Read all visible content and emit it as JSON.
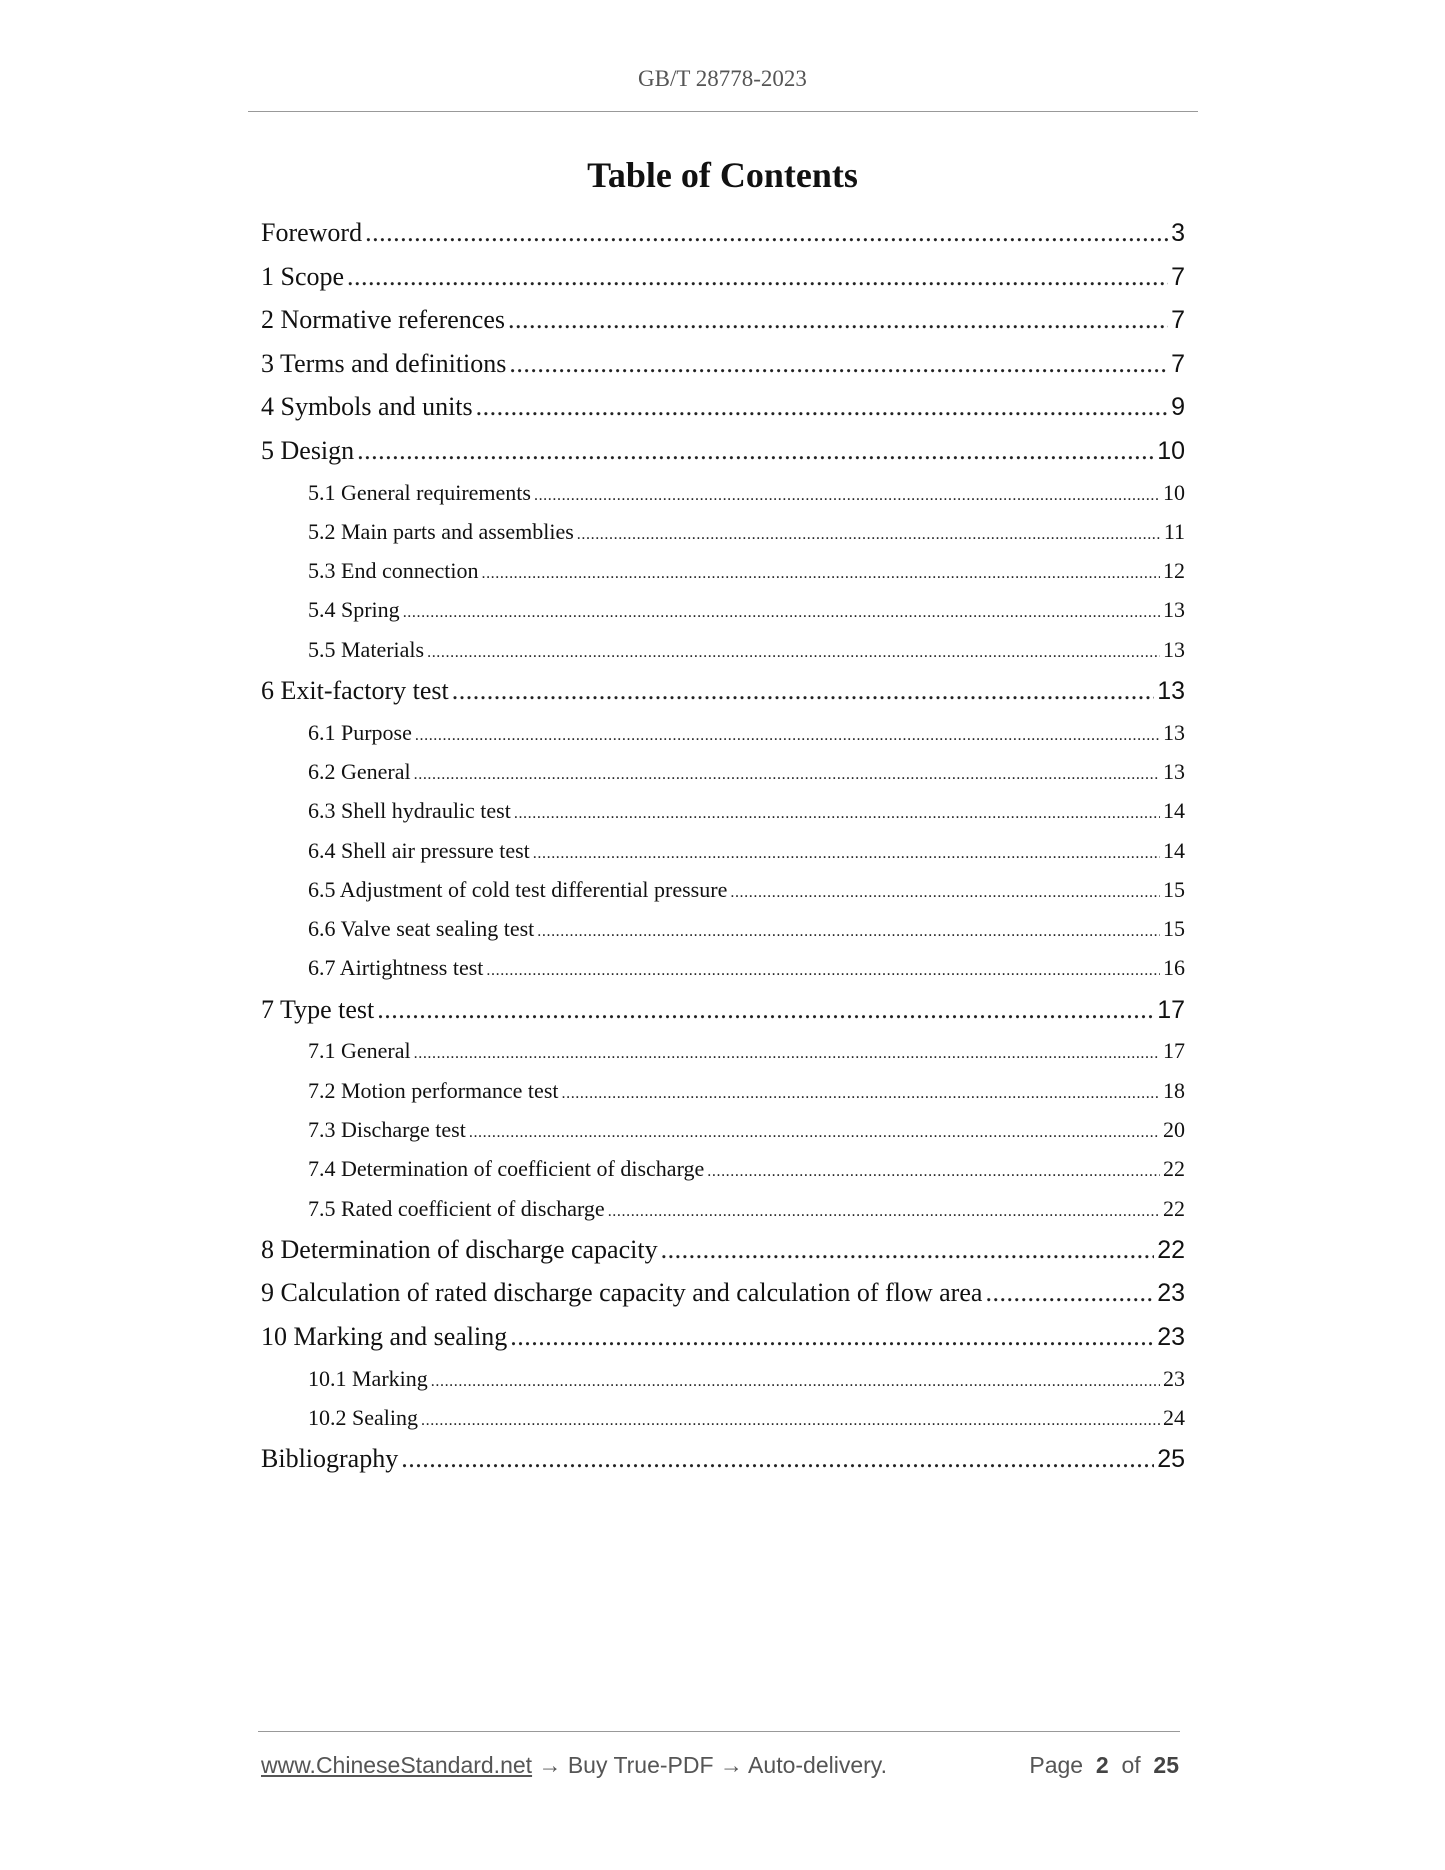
{
  "header": {
    "doc_code": "GB/T 28778-2023"
  },
  "title": "Table of Contents",
  "toc": [
    {
      "level": 1,
      "label": "Foreword",
      "page": "3"
    },
    {
      "level": 1,
      "label": "1 Scope",
      "page": "7"
    },
    {
      "level": 1,
      "label": "2 Normative references",
      "page": "7"
    },
    {
      "level": 1,
      "label": "3 Terms and definitions",
      "page": "7"
    },
    {
      "level": 1,
      "label": "4 Symbols and units",
      "page": "9"
    },
    {
      "level": 1,
      "label": "5 Design",
      "page": "10"
    },
    {
      "level": 2,
      "label": "5.1 General requirements",
      "page": "10"
    },
    {
      "level": 2,
      "label": "5.2 Main parts and assemblies",
      "page": "11"
    },
    {
      "level": 2,
      "label": "5.3 End connection",
      "page": "12"
    },
    {
      "level": 2,
      "label": "5.4 Spring",
      "page": "13"
    },
    {
      "level": 2,
      "label": "5.5 Materials",
      "page": "13"
    },
    {
      "level": 1,
      "label": "6 Exit-factory test",
      "page": "13"
    },
    {
      "level": 2,
      "label": "6.1 Purpose",
      "page": "13"
    },
    {
      "level": 2,
      "label": "6.2 General",
      "page": "13"
    },
    {
      "level": 2,
      "label": "6.3 Shell hydraulic test",
      "page": "14"
    },
    {
      "level": 2,
      "label": "6.4 Shell air pressure test",
      "page": "14"
    },
    {
      "level": 2,
      "label": "6.5 Adjustment of cold test differential pressure",
      "page": "15"
    },
    {
      "level": 2,
      "label": "6.6 Valve seat sealing test",
      "page": "15"
    },
    {
      "level": 2,
      "label": "6.7 Airtightness test",
      "page": "16"
    },
    {
      "level": 1,
      "label": "7 Type test",
      "page": "17"
    },
    {
      "level": 2,
      "label": "7.1 General",
      "page": "17"
    },
    {
      "level": 2,
      "label": "7.2 Motion performance test",
      "page": "18"
    },
    {
      "level": 2,
      "label": "7.3 Discharge test",
      "page": "20"
    },
    {
      "level": 2,
      "label": "7.4 Determination of coefficient of discharge",
      "page": "22"
    },
    {
      "level": 2,
      "label": "7.5 Rated coefficient of discharge",
      "page": "22"
    },
    {
      "level": 1,
      "label": "8 Determination of discharge capacity",
      "page": "22"
    },
    {
      "level": 1,
      "label": "9 Calculation of rated discharge capacity and calculation of flow area",
      "page": "23"
    },
    {
      "level": 1,
      "label": "10 Marking and sealing",
      "page": "23"
    },
    {
      "level": 2,
      "label": "10.1 Marking",
      "page": "23"
    },
    {
      "level": 2,
      "label": "10.2 Sealing",
      "page": "24"
    },
    {
      "level": 1,
      "label": "Bibliography",
      "page": "25"
    }
  ],
  "footer": {
    "link": "www.ChineseStandard.net",
    "tagline": " → Buy True-PDF → Auto-delivery.",
    "page_word": "Page",
    "page_current": "2",
    "of_word": "of",
    "page_total": "25"
  }
}
